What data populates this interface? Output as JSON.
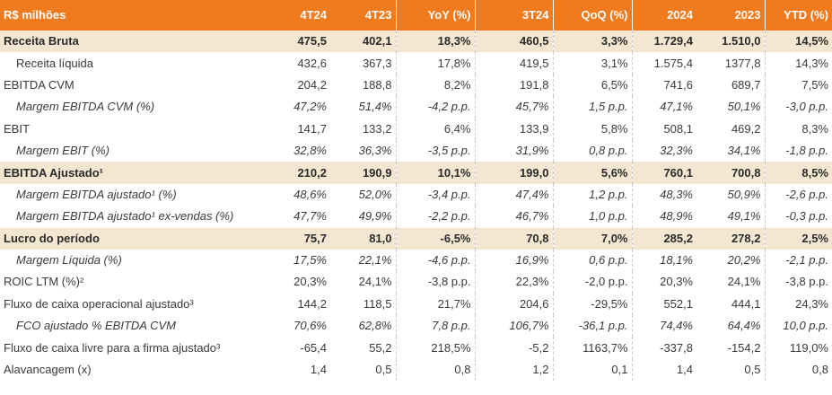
{
  "header": {
    "label": "R$ milhões",
    "columns": [
      "4T24",
      "4T23",
      "YoY (%)",
      "3T24",
      "QoQ (%)",
      "2024",
      "2023",
      "YTD (%)"
    ]
  },
  "rows": [
    {
      "label": "Receita Bruta",
      "values": [
        "475,5",
        "402,1",
        "18,3%",
        "460,5",
        "3,3%",
        "1.729,4",
        "1.510,0",
        "14,5%"
      ],
      "highlight": true,
      "italic": false,
      "indent": false
    },
    {
      "label": "Receita líquida",
      "values": [
        "432,6",
        "367,3",
        "17,8%",
        "419,5",
        "3,1%",
        "1.575,4",
        "1377,8",
        "14,3%"
      ],
      "highlight": false,
      "italic": false,
      "indent": true
    },
    {
      "label": "EBITDA CVM",
      "values": [
        "204,2",
        "188,8",
        "8,2%",
        "191,8",
        "6,5%",
        "741,6",
        "689,7",
        "7,5%"
      ],
      "highlight": false,
      "italic": false,
      "indent": false
    },
    {
      "label": "Margem EBITDA CVM (%)",
      "values": [
        "47,2%",
        "51,4%",
        "-4,2 p.p.",
        "45,7%",
        "1,5 p.p.",
        "47,1%",
        "50,1%",
        "-3,0 p.p."
      ],
      "highlight": false,
      "italic": true,
      "indent": true
    },
    {
      "label": "EBIT",
      "values": [
        "141,7",
        "133,2",
        "6,4%",
        "133,9",
        "5,8%",
        "508,1",
        "469,2",
        "8,3%"
      ],
      "highlight": false,
      "italic": false,
      "indent": false
    },
    {
      "label": "Margem EBIT (%)",
      "values": [
        "32,8%",
        "36,3%",
        "-3,5 p.p.",
        "31,9%",
        "0,8 p.p.",
        "32,3%",
        "34,1%",
        "-1,8 p.p."
      ],
      "highlight": false,
      "italic": true,
      "indent": true
    },
    {
      "label": "EBITDA Ajustado¹",
      "values": [
        "210,2",
        "190,9",
        "10,1%",
        "199,0",
        "5,6%",
        "760,1",
        "700,8",
        "8,5%"
      ],
      "highlight": true,
      "italic": false,
      "indent": false
    },
    {
      "label": "Margem EBITDA ajustado¹ (%)",
      "values": [
        "48,6%",
        "52,0%",
        "-3,4 p.p.",
        "47,4%",
        "1,2 p.p.",
        "48,3%",
        "50,9%",
        "-2,6 p.p."
      ],
      "highlight": false,
      "italic": true,
      "indent": true
    },
    {
      "label": "Margem EBITDA ajustado¹ ex-vendas (%)",
      "values": [
        "47,7%",
        "49,9%",
        "-2,2 p.p.",
        "46,7%",
        "1,0 p.p.",
        "48,9%",
        "49,1%",
        "-0,3 p.p."
      ],
      "highlight": false,
      "italic": true,
      "indent": true
    },
    {
      "label": "Lucro do período",
      "values": [
        "75,7",
        "81,0",
        "-6,5%",
        "70,8",
        "7,0%",
        "285,2",
        "278,2",
        "2,5%"
      ],
      "highlight": true,
      "italic": false,
      "indent": false
    },
    {
      "label": "Margem Líquida (%)",
      "values": [
        "17,5%",
        "22,1%",
        "-4,6 p.p.",
        "16,9%",
        "0,6 p.p.",
        "18,1%",
        "20,2%",
        "-2,1 p.p."
      ],
      "highlight": false,
      "italic": true,
      "indent": true
    },
    {
      "label": "ROIC LTM (%)²",
      "values": [
        "20,3%",
        "24,1%",
        "-3,8 p.p.",
        "22,3%",
        "-2,0 p.p.",
        "20,3%",
        "24,1%",
        "-3,8 p.p."
      ],
      "highlight": false,
      "italic": false,
      "indent": false
    },
    {
      "label": "Fluxo de caixa operacional ajustado³",
      "values": [
        "144,2",
        "118,5",
        "21,7%",
        "204,6",
        "-29,5%",
        "552,1",
        "444,1",
        "24,3%"
      ],
      "highlight": false,
      "italic": false,
      "indent": false
    },
    {
      "label": "FCO ajustado % EBITDA CVM",
      "values": [
        "70,6%",
        "62,8%",
        "7,8 p.p.",
        "106,7%",
        "-36,1 p.p.",
        "74,4%",
        "64,4%",
        "10,0 p.p."
      ],
      "highlight": false,
      "italic": true,
      "indent": true
    },
    {
      "label": "Fluxo de caixa livre para a firma ajustado³",
      "values": [
        "-65,4",
        "55,2",
        "218,5%",
        "-5,2",
        "1163,7%",
        "-337,8",
        "-154,2",
        "119,0%"
      ],
      "highlight": false,
      "italic": false,
      "indent": false
    },
    {
      "label": "Alavancagem (x)",
      "values": [
        "1,4",
        "0,5",
        "0,8",
        "1,2",
        "0,1",
        "1,4",
        "0,5",
        "0,8"
      ],
      "highlight": false,
      "italic": false,
      "indent": false
    }
  ]
}
